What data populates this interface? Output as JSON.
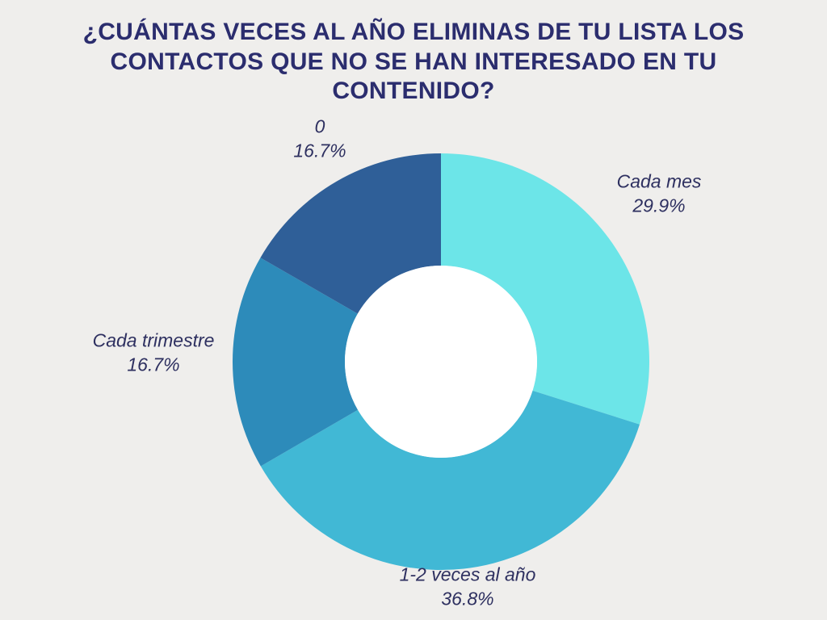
{
  "title": "¿CUÁNTAS VECES AL AÑO ELIMINAS DE TU LISTA LOS CONTACTOS QUE NO SE HAN INTERESADO EN TU CONTENIDO?",
  "colors": {
    "background": "#efeeec",
    "title_text": "#2b2d6e",
    "label_text": "#2e3060",
    "hole": "#ffffff"
  },
  "chart_data": {
    "type": "pie",
    "donut": true,
    "title": "¿CUÁNTAS VECES AL AÑO ELIMINAS DE TU LISTA LOS CONTACTOS QUE NO SE HAN INTERESADO EN TU CONTENIDO?",
    "start_angle_deg": -90,
    "direction": "clockwise",
    "legend_position": "outside-labels",
    "slices": [
      {
        "label": "Cada mes",
        "value": 29.9,
        "pct": "29.9%",
        "color": "#6CE5E8"
      },
      {
        "label": "1-2 veces al año",
        "value": 36.8,
        "pct": "36.8%",
        "color": "#41B8D5"
      },
      {
        "label": "Cada trimestre",
        "value": 16.7,
        "pct": "16.7%",
        "color": "#2D8BBA"
      },
      {
        "label": "0",
        "value": 16.7,
        "pct": "16.7%",
        "color": "#2F5F98"
      }
    ]
  }
}
